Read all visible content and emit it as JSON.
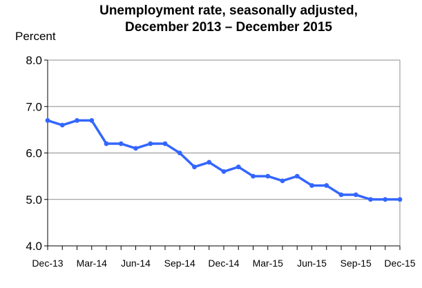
{
  "chart_data": {
    "type": "line",
    "title_lines": [
      "Unemployment rate, seasonally adjusted,",
      "December 2013 – December 2015"
    ],
    "ylabel": "Percent",
    "xlabel": "",
    "ylim": [
      4.0,
      8.0
    ],
    "y_ticks": [
      "4.0",
      "5.0",
      "6.0",
      "7.0",
      "8.0"
    ],
    "x_tick_labels": [
      {
        "index": 0,
        "label": "Dec-13"
      },
      {
        "index": 3,
        "label": "Mar-14"
      },
      {
        "index": 6,
        "label": "Jun-14"
      },
      {
        "index": 9,
        "label": "Sep-14"
      },
      {
        "index": 12,
        "label": "Dec-14"
      },
      {
        "index": 15,
        "label": "Mar-15"
      },
      {
        "index": 18,
        "label": "Jun-15"
      },
      {
        "index": 21,
        "label": "Sep-15"
      },
      {
        "index": 24,
        "label": "Dec-15"
      }
    ],
    "categories": [
      "Dec-13",
      "Jan-14",
      "Feb-14",
      "Mar-14",
      "Apr-14",
      "May-14",
      "Jun-14",
      "Jul-14",
      "Aug-14",
      "Sep-14",
      "Oct-14",
      "Nov-14",
      "Dec-14",
      "Jan-15",
      "Feb-15",
      "Mar-15",
      "Apr-15",
      "May-15",
      "Jun-15",
      "Jul-15",
      "Aug-15",
      "Sep-15",
      "Oct-15",
      "Nov-15",
      "Dec-15"
    ],
    "series": [
      {
        "values": [
          6.7,
          6.6,
          6.7,
          6.7,
          6.2,
          6.2,
          6.1,
          6.2,
          6.2,
          6.0,
          5.7,
          5.8,
          5.6,
          5.7,
          5.5,
          5.5,
          5.4,
          5.5,
          5.3,
          5.3,
          5.1,
          5.1,
          5.0,
          5.0,
          5.0
        ]
      }
    ],
    "grid": true,
    "legend": "none",
    "colors": {
      "line": "#3366ff",
      "grid": "#8c8c8c",
      "axis": "#000000"
    }
  }
}
